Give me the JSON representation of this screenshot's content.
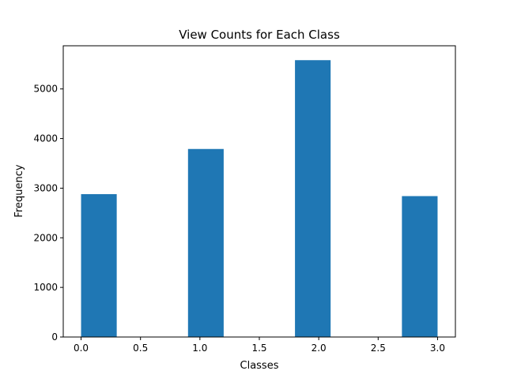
{
  "chart_data": {
    "type": "bar",
    "title": "View Counts for Each Class",
    "xlabel": "Classes",
    "ylabel": "Frequency",
    "bar_color": "#1f77b4",
    "xlim": [
      -0.15,
      3.15
    ],
    "ylim": [
      0,
      5870
    ],
    "grid": false,
    "legend": "none",
    "xticks": [
      "0.0",
      "0.5",
      "1.0",
      "1.5",
      "2.0",
      "2.5",
      "3.0"
    ],
    "yticks": [
      "0",
      "1000",
      "2000",
      "3000",
      "4000",
      "5000"
    ],
    "bars": [
      {
        "x0": 0.0,
        "x1": 0.3,
        "value": 2880
      },
      {
        "x0": 0.9,
        "x1": 1.2,
        "value": 3790
      },
      {
        "x0": 1.8,
        "x1": 2.1,
        "value": 5580
      },
      {
        "x0": 2.7,
        "x1": 3.0,
        "value": 2840
      }
    ]
  }
}
